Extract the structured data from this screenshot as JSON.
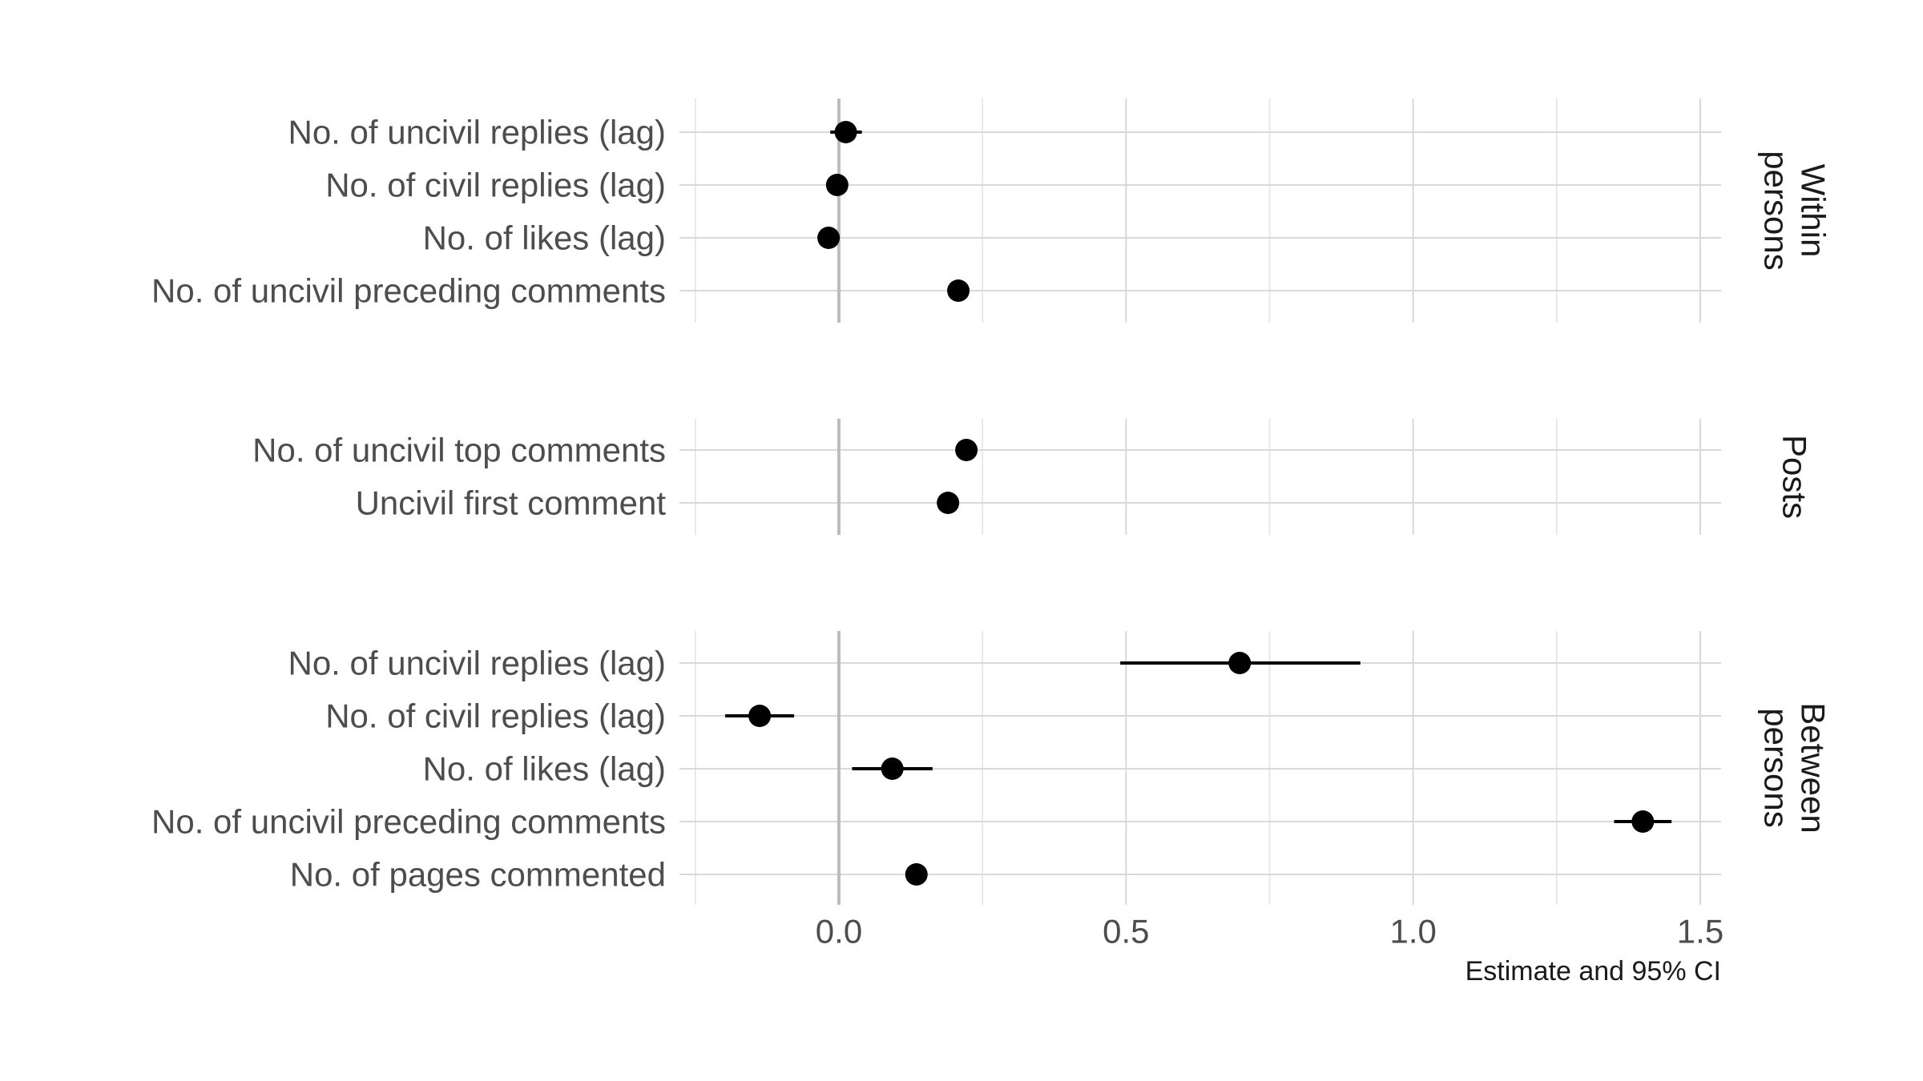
{
  "chart_data": {
    "type": "scatter",
    "subtype": "coefficient-plot-with-confidence-intervals",
    "title": "",
    "xlabel": "Estimate and 95% CI",
    "ylabel": "",
    "xlim": [
      -0.25,
      1.55
    ],
    "x_ticks": [
      0.0,
      0.5,
      1.0,
      1.5
    ],
    "x_tick_labels": [
      "0.0",
      "0.5",
      "1.0",
      "1.5"
    ],
    "reference_line": 0.0,
    "grid": true,
    "point_color": "#000000",
    "panels": [
      {
        "strip_label": [
          "Within",
          "persons"
        ],
        "rows": [
          {
            "label": "No. of uncivil replies (lag)",
            "estimate": 0.012,
            "ci_low": -0.015,
            "ci_high": 0.04
          },
          {
            "label": "No. of civil replies (lag)",
            "estimate": -0.003,
            "ci_low": -0.01,
            "ci_high": 0.005
          },
          {
            "label": "No. of likes (lag)",
            "estimate": -0.018,
            "ci_low": -0.022,
            "ci_high": -0.014
          },
          {
            "label": "No. of uncivil preceding comments",
            "estimate": 0.208,
            "ci_low": 0.202,
            "ci_high": 0.214
          }
        ]
      },
      {
        "strip_label": [
          "Posts"
        ],
        "rows": [
          {
            "label": "No. of uncivil top comments",
            "estimate": 0.222,
            "ci_low": 0.214,
            "ci_high": 0.23
          },
          {
            "label": "Uncivil first comment ",
            "estimate": 0.19,
            "ci_low": 0.172,
            "ci_high": 0.208
          }
        ]
      },
      {
        "strip_label": [
          "Between",
          "persons"
        ],
        "rows": [
          {
            "label": "No. of uncivil replies (lag)",
            "estimate": 0.698,
            "ci_low": 0.49,
            "ci_high": 0.908
          },
          {
            "label": "No. of civil replies (lag)",
            "estimate": -0.138,
            "ci_low": -0.198,
            "ci_high": -0.078
          },
          {
            "label": "No. of likes (lag)",
            "estimate": 0.093,
            "ci_low": 0.023,
            "ci_high": 0.163
          },
          {
            "label": "No. of uncivil preceding comments",
            "estimate": 1.4,
            "ci_low": 1.35,
            "ci_high": 1.45
          },
          {
            "label": "No. of pages commented",
            "estimate": 0.135,
            "ci_low": 0.124,
            "ci_high": 0.146
          }
        ]
      }
    ]
  }
}
